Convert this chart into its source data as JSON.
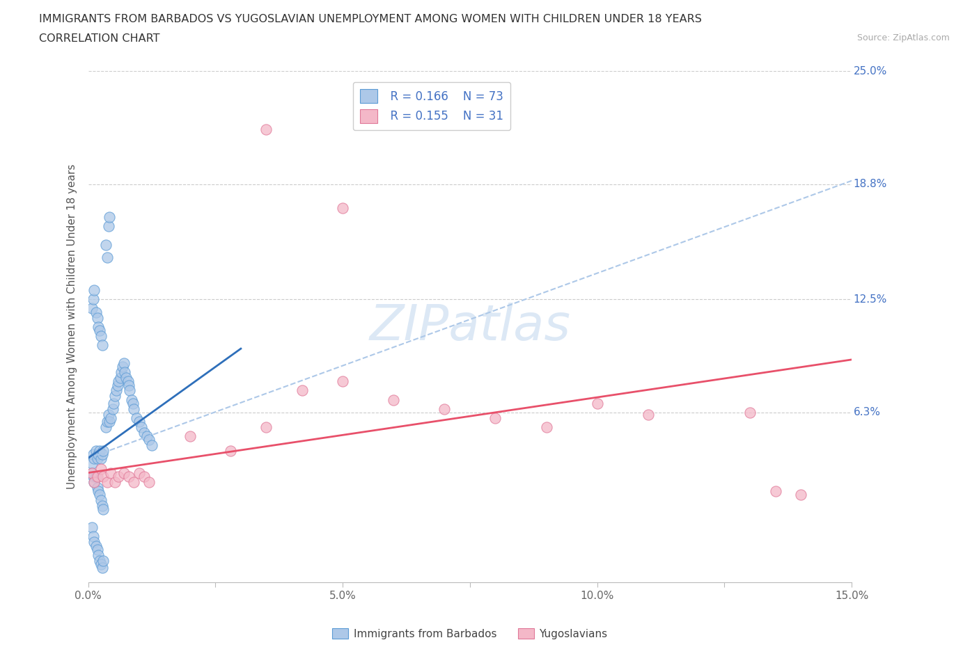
{
  "title": "IMMIGRANTS FROM BARBADOS VS YUGOSLAVIAN UNEMPLOYMENT AMONG WOMEN WITH CHILDREN UNDER 18 YEARS",
  "subtitle": "CORRELATION CHART",
  "source": "Source: ZipAtlas.com",
  "ylabel": "Unemployment Among Women with Children Under 18 years",
  "xlim": [
    0.0,
    0.15
  ],
  "ylim": [
    -0.03,
    0.25
  ],
  "ytick_vals": [
    0.063,
    0.125,
    0.188,
    0.25
  ],
  "ytick_labels": [
    "6.3%",
    "12.5%",
    "18.8%",
    "25.0%"
  ],
  "xtick_vals": [
    0.0,
    0.025,
    0.05,
    0.075,
    0.1,
    0.125,
    0.15
  ],
  "xtick_labels": [
    "0.0%",
    "",
    "5.0%",
    "",
    "10.0%",
    "",
    "15.0%"
  ],
  "legend_r1": "R = 0.166",
  "legend_n1": "N = 73",
  "legend_r2": "R = 0.155",
  "legend_n2": "N = 31",
  "color_blue_fill": "#adc8e8",
  "color_blue_edge": "#5b9bd5",
  "color_pink_fill": "#f4b8c8",
  "color_pink_edge": "#e07898",
  "color_blue_line": "#2e6fba",
  "color_pink_line": "#e8506a",
  "color_blue_dashed": "#adc8e8",
  "color_text_blue": "#4472c4",
  "watermark_color": "#dce8f5",
  "legend_bottom_blue_fill": "#adc8e8",
  "legend_bottom_blue_edge": "#5b9bd5",
  "legend_bottom_pink_fill": "#f4b8c8",
  "legend_bottom_pink_edge": "#e07898",
  "blue_x": [
    0.0008,
    0.001,
    0.0012,
    0.0015,
    0.0018,
    0.002,
    0.0022,
    0.0025,
    0.0028,
    0.003,
    0.0008,
    0.001,
    0.0012,
    0.0015,
    0.0018,
    0.002,
    0.0022,
    0.0025,
    0.0028,
    0.003,
    0.0035,
    0.0038,
    0.004,
    0.0042,
    0.0045,
    0.0048,
    0.005,
    0.0052,
    0.0055,
    0.0058,
    0.006,
    0.0063,
    0.0065,
    0.0068,
    0.007,
    0.0072,
    0.0075,
    0.0078,
    0.008,
    0.0082,
    0.0085,
    0.0088,
    0.009,
    0.0095,
    0.01,
    0.0105,
    0.011,
    0.0115,
    0.012,
    0.0125,
    0.0008,
    0.001,
    0.0012,
    0.0015,
    0.0018,
    0.002,
    0.0022,
    0.0025,
    0.0028,
    0.003,
    0.0035,
    0.0038,
    0.004,
    0.0042,
    0.0008,
    0.001,
    0.0012,
    0.0015,
    0.0018,
    0.002,
    0.0022,
    0.0025,
    0.0028
  ],
  "blue_y": [
    0.035,
    0.04,
    0.038,
    0.042,
    0.038,
    0.04,
    0.042,
    0.038,
    0.04,
    0.042,
    0.03,
    0.028,
    0.025,
    0.028,
    0.022,
    0.02,
    0.018,
    0.015,
    0.012,
    0.01,
    0.055,
    0.058,
    0.062,
    0.058,
    0.06,
    0.065,
    0.068,
    0.072,
    0.075,
    0.078,
    0.08,
    0.082,
    0.085,
    0.088,
    0.09,
    0.085,
    0.082,
    0.08,
    0.078,
    0.075,
    0.07,
    0.068,
    0.065,
    0.06,
    0.058,
    0.055,
    0.052,
    0.05,
    0.048,
    0.045,
    0.0,
    -0.005,
    -0.008,
    -0.01,
    -0.012,
    -0.015,
    -0.018,
    -0.02,
    -0.022,
    -0.018,
    0.155,
    0.148,
    0.165,
    0.17,
    0.12,
    0.125,
    0.13,
    0.118,
    0.115,
    0.11,
    0.108,
    0.105,
    0.1
  ],
  "pink_x": [
    0.0008,
    0.0012,
    0.0018,
    0.0025,
    0.003,
    0.0038,
    0.0045,
    0.0052,
    0.006,
    0.007,
    0.008,
    0.009,
    0.01,
    0.011,
    0.012,
    0.02,
    0.028,
    0.035,
    0.042,
    0.05,
    0.06,
    0.07,
    0.08,
    0.09,
    0.1,
    0.11,
    0.13,
    0.135,
    0.14,
    0.035,
    0.05
  ],
  "pink_y": [
    0.03,
    0.025,
    0.028,
    0.032,
    0.028,
    0.025,
    0.03,
    0.025,
    0.028,
    0.03,
    0.028,
    0.025,
    0.03,
    0.028,
    0.025,
    0.05,
    0.042,
    0.055,
    0.075,
    0.08,
    0.07,
    0.065,
    0.06,
    0.055,
    0.068,
    0.062,
    0.063,
    0.02,
    0.018,
    0.218,
    0.175
  ]
}
